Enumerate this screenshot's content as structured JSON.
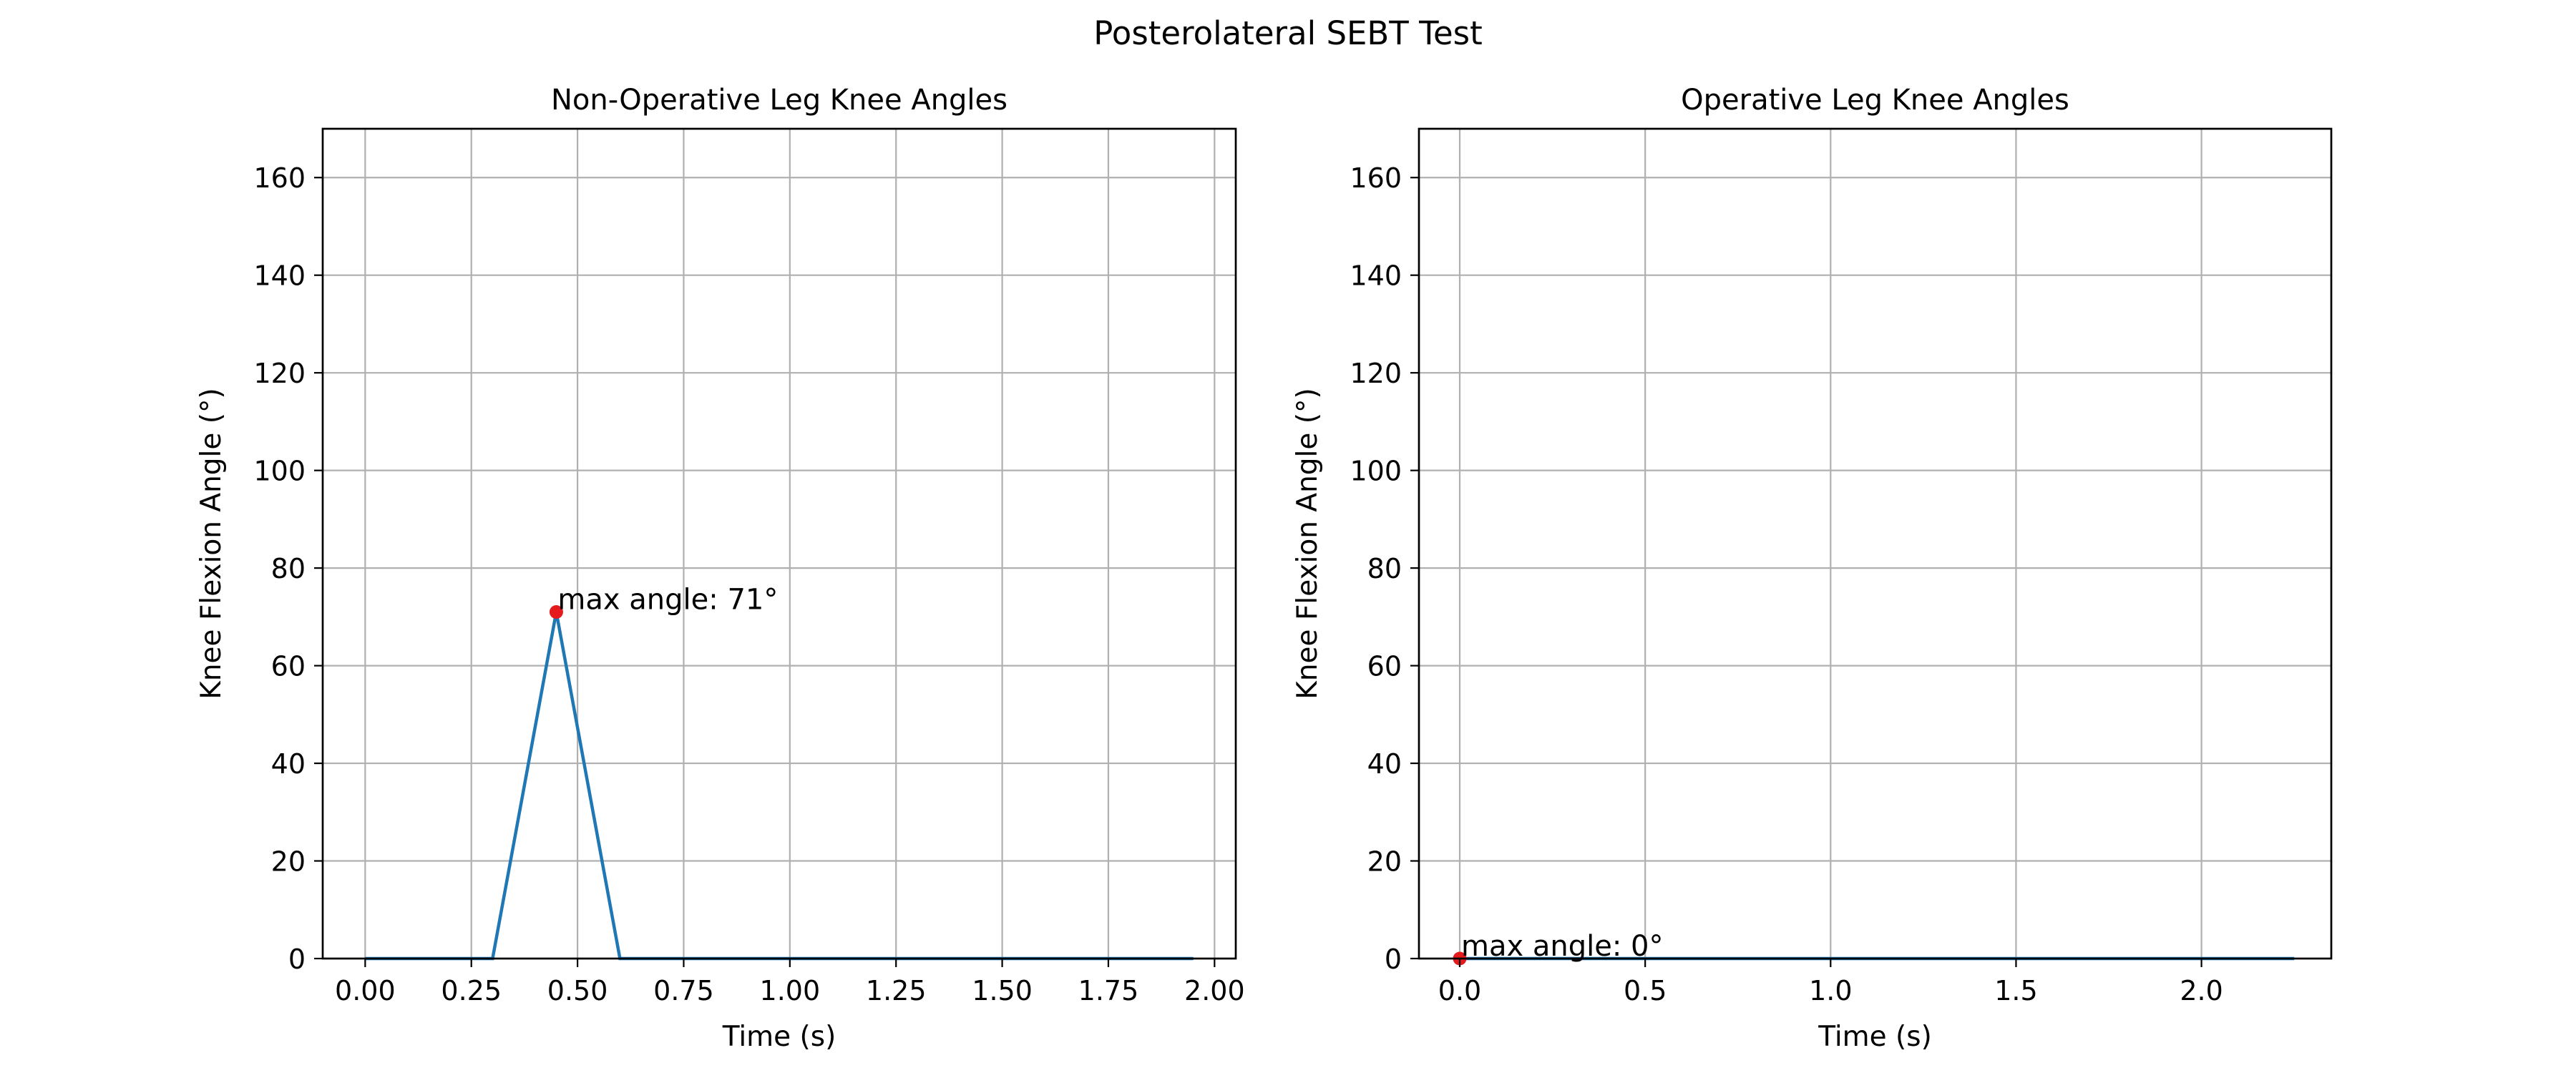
{
  "figure": {
    "suptitle": "Posterolateral SEBT Test"
  },
  "chart_data": [
    {
      "type": "line",
      "title": "Non-Operative Leg Knee Angles",
      "xlabel": "Time (s)",
      "ylabel": "Knee Flexion Angle (°)",
      "xlim": [
        -0.1,
        2.05
      ],
      "ylim": [
        0,
        170
      ],
      "xticks": [
        0.0,
        0.25,
        0.5,
        0.75,
        1.0,
        1.25,
        1.5,
        1.75,
        2.0
      ],
      "xtick_labels": [
        "0.00",
        "0.25",
        "0.50",
        "0.75",
        "1.00",
        "1.25",
        "1.50",
        "1.75",
        "2.00"
      ],
      "yticks": [
        0,
        20,
        40,
        60,
        80,
        100,
        120,
        140,
        160
      ],
      "ytick_labels": [
        "0",
        "20",
        "40",
        "60",
        "80",
        "100",
        "120",
        "140",
        "160"
      ],
      "grid": true,
      "series": [
        {
          "color": "#1f77b4",
          "x": [
            0.0,
            0.3,
            0.45,
            0.6,
            1.95
          ],
          "y": [
            0,
            0,
            71,
            0,
            0
          ]
        }
      ],
      "max_point": {
        "x": 0.45,
        "y": 71,
        "color": "#e41a1c"
      },
      "annotation": "max angle: 71°"
    },
    {
      "type": "line",
      "title": "Operative Leg Knee Angles",
      "xlabel": "Time (s)",
      "ylabel": "Knee Flexion Angle (°)",
      "xlim": [
        -0.11,
        2.35
      ],
      "ylim": [
        0,
        170
      ],
      "xticks": [
        0.0,
        0.5,
        1.0,
        1.5,
        2.0
      ],
      "xtick_labels": [
        "0.0",
        "0.5",
        "1.0",
        "1.5",
        "2.0"
      ],
      "yticks": [
        0,
        20,
        40,
        60,
        80,
        100,
        120,
        140,
        160
      ],
      "ytick_labels": [
        "0",
        "20",
        "40",
        "60",
        "80",
        "100",
        "120",
        "140",
        "160"
      ],
      "grid": true,
      "series": [
        {
          "color": "#1f77b4",
          "x": [
            0.0,
            2.25
          ],
          "y": [
            0,
            0
          ]
        }
      ],
      "max_point": {
        "x": 0.0,
        "y": 0,
        "color": "#e41a1c"
      },
      "annotation": "max angle: 0°"
    }
  ]
}
